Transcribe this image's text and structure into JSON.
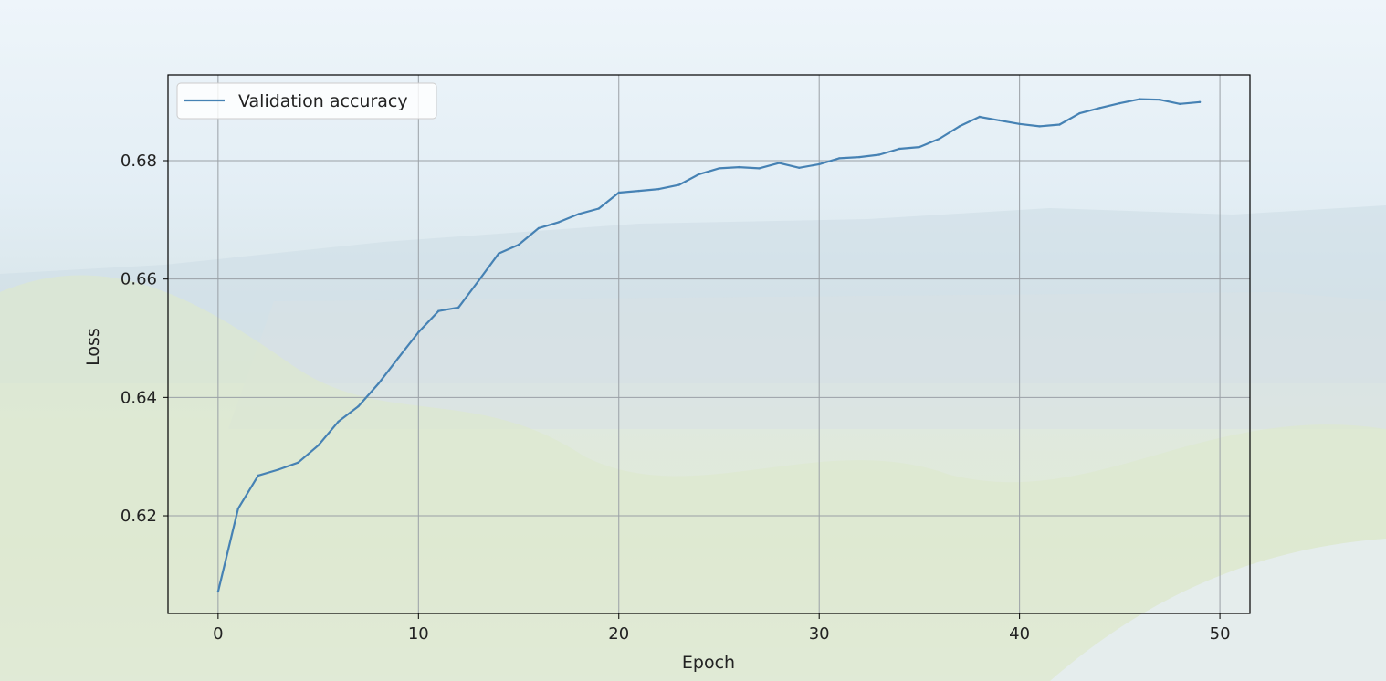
{
  "chart_data": {
    "type": "line",
    "title": "",
    "xlabel": "Epoch",
    "ylabel": "Loss",
    "xlim": [
      -2.5,
      51.5
    ],
    "ylim": [
      0.6035,
      0.6945
    ],
    "xticks": [
      0,
      10,
      20,
      30,
      40,
      50
    ],
    "yticks": [
      0.62,
      0.64,
      0.66,
      0.68
    ],
    "ytick_labels": [
      "0.62",
      "0.64",
      "0.66",
      "0.68"
    ],
    "grid": true,
    "legend_position": "top-left",
    "series": [
      {
        "name": "Validation accuracy",
        "color": "#4682b4",
        "x": [
          0,
          1,
          2,
          3,
          4,
          5,
          6,
          7,
          8,
          9,
          10,
          11,
          12,
          13,
          14,
          15,
          16,
          17,
          18,
          19,
          20,
          21,
          22,
          23,
          24,
          25,
          26,
          27,
          28,
          29,
          30,
          31,
          32,
          33,
          34,
          35,
          36,
          37,
          38,
          39,
          40,
          41,
          42,
          43,
          44,
          45,
          46,
          47,
          48,
          49
        ],
        "y": [
          0.6072,
          0.6212,
          0.6268,
          0.6278,
          0.629,
          0.6319,
          0.6359,
          0.6385,
          0.6423,
          0.6467,
          0.651,
          0.6546,
          0.6552,
          0.6597,
          0.6643,
          0.6658,
          0.6686,
          0.6696,
          0.671,
          0.6719,
          0.6746,
          0.6749,
          0.6752,
          0.6759,
          0.6777,
          0.6787,
          0.6789,
          0.6787,
          0.6796,
          0.6788,
          0.6794,
          0.6804,
          0.6806,
          0.681,
          0.682,
          0.6823,
          0.6837,
          0.6858,
          0.6874,
          0.6868,
          0.6862,
          0.6858,
          0.6861,
          0.688,
          0.6889,
          0.6897,
          0.6904,
          0.6903,
          0.6896,
          0.6899
        ]
      }
    ]
  }
}
